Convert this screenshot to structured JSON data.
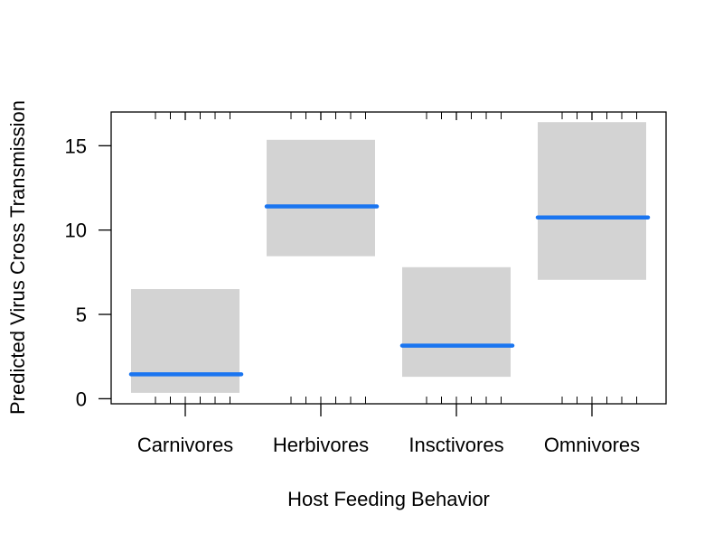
{
  "chart_data": {
    "type": "crossbar",
    "xlabel": "Host Feeding Behavior",
    "ylabel": "Predicted Virus Cross Transmission",
    "categories": [
      "Carnivores",
      "Herbivores",
      "Insctivores",
      "Omnivores"
    ],
    "fit": [
      1.45,
      11.4,
      3.15,
      10.75
    ],
    "lower": [
      0.35,
      8.45,
      1.3,
      7.05
    ],
    "upper": [
      6.5,
      15.35,
      7.8,
      16.4
    ],
    "yticks": [
      0,
      5,
      10,
      15
    ],
    "ylim": [
      -0.3,
      17.0
    ],
    "band_color": "#d3d3d3",
    "line_color": "#1a75f0",
    "grid": false
  }
}
